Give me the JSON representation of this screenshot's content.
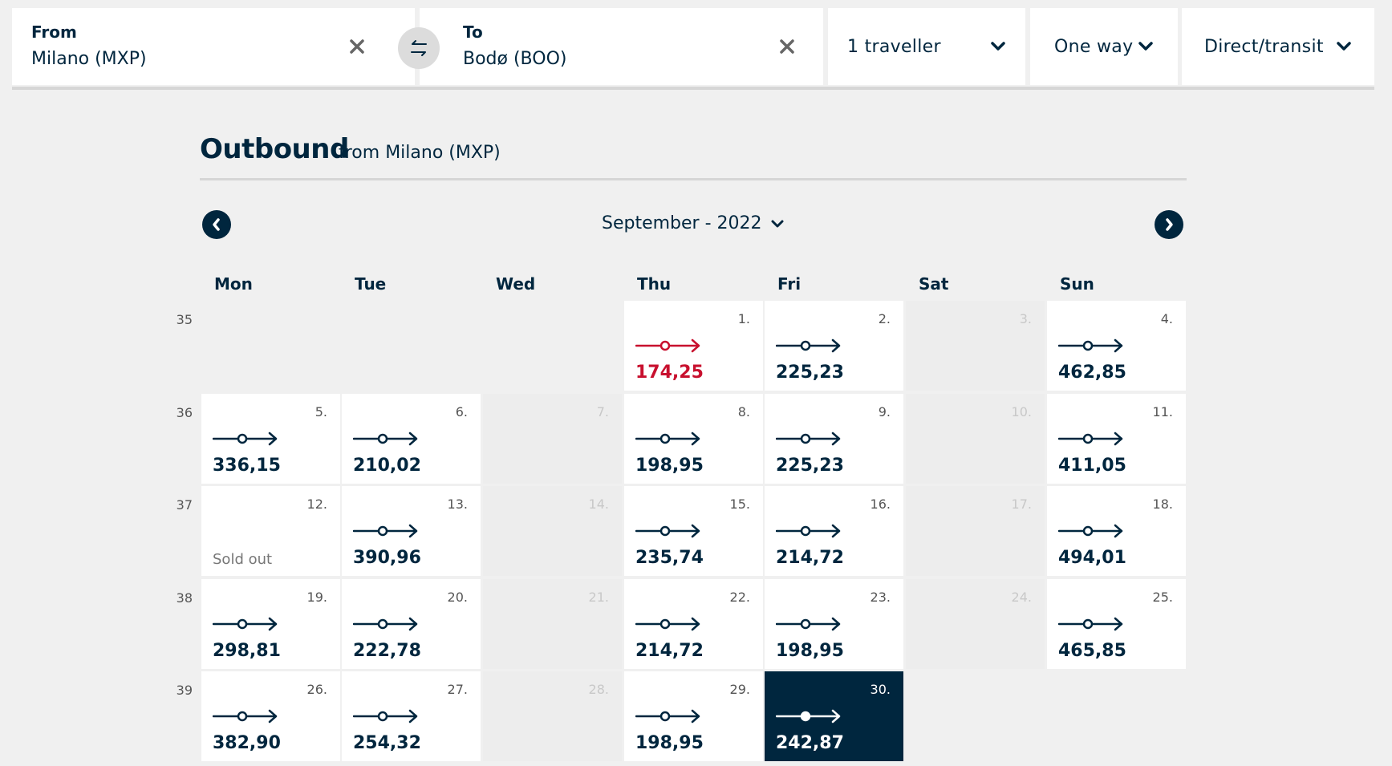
{
  "search": {
    "from": {
      "label": "From",
      "value": "Milano (MXP)"
    },
    "to": {
      "label": "To",
      "value": "Bodø (BOO)"
    },
    "travellers": "1 traveller",
    "trip_type": "One way",
    "route_type": "Direct/transit"
  },
  "outbound": {
    "title": "Outbound",
    "subtitle": "from Milano (MXP)"
  },
  "calendar": {
    "month_label": "September - 2022",
    "weekdays": [
      "Mon",
      "Tue",
      "Wed",
      "Thu",
      "Fri",
      "Sat",
      "Sun"
    ],
    "weeks": [
      {
        "week": "35",
        "days": [
          null,
          null,
          null,
          {
            "day": "1.",
            "price": "174,25",
            "status": "cheapest"
          },
          {
            "day": "2.",
            "price": "225,23",
            "status": "available"
          },
          {
            "day": "3.",
            "price": "",
            "status": "no-flights"
          },
          {
            "day": "4.",
            "price": "462,85",
            "status": "available"
          }
        ]
      },
      {
        "week": "36",
        "days": [
          {
            "day": "5.",
            "price": "336,15",
            "status": "available"
          },
          {
            "day": "6.",
            "price": "210,02",
            "status": "available"
          },
          {
            "day": "7.",
            "price": "",
            "status": "no-flights"
          },
          {
            "day": "8.",
            "price": "198,95",
            "status": "available"
          },
          {
            "day": "9.",
            "price": "225,23",
            "status": "available"
          },
          {
            "day": "10.",
            "price": "",
            "status": "no-flights"
          },
          {
            "day": "11.",
            "price": "411,05",
            "status": "available"
          }
        ]
      },
      {
        "week": "37",
        "days": [
          {
            "day": "12.",
            "price": "",
            "status": "sold-out",
            "note": "Sold out"
          },
          {
            "day": "13.",
            "price": "390,96",
            "status": "available"
          },
          {
            "day": "14.",
            "price": "",
            "status": "no-flights"
          },
          {
            "day": "15.",
            "price": "235,74",
            "status": "available"
          },
          {
            "day": "16.",
            "price": "214,72",
            "status": "available"
          },
          {
            "day": "17.",
            "price": "",
            "status": "no-flights"
          },
          {
            "day": "18.",
            "price": "494,01",
            "status": "available"
          }
        ]
      },
      {
        "week": "38",
        "days": [
          {
            "day": "19.",
            "price": "298,81",
            "status": "available"
          },
          {
            "day": "20.",
            "price": "222,78",
            "status": "available"
          },
          {
            "day": "21.",
            "price": "",
            "status": "no-flights"
          },
          {
            "day": "22.",
            "price": "214,72",
            "status": "available"
          },
          {
            "day": "23.",
            "price": "198,95",
            "status": "available"
          },
          {
            "day": "24.",
            "price": "",
            "status": "no-flights"
          },
          {
            "day": "25.",
            "price": "465,85",
            "status": "available"
          }
        ]
      },
      {
        "week": "39",
        "days": [
          {
            "day": "26.",
            "price": "382,90",
            "status": "available"
          },
          {
            "day": "27.",
            "price": "254,32",
            "status": "available"
          },
          {
            "day": "28.",
            "price": "",
            "status": "no-flights"
          },
          {
            "day": "29.",
            "price": "198,95",
            "status": "available"
          },
          {
            "day": "30.",
            "price": "242,87",
            "status": "selected"
          },
          null,
          null
        ]
      }
    ]
  },
  "colors": {
    "navy": "#00263e",
    "cheapest_red": "#c8102e",
    "background": "#f0f0f0",
    "blank_cell": "#ededed"
  },
  "icons": {
    "clear": "close-icon",
    "swap": "swap-arrows-icon",
    "dropdown": "chevron-down-icon",
    "prev": "chevron-left-icon",
    "next": "chevron-right-icon",
    "route": "route-arrow-icon"
  }
}
